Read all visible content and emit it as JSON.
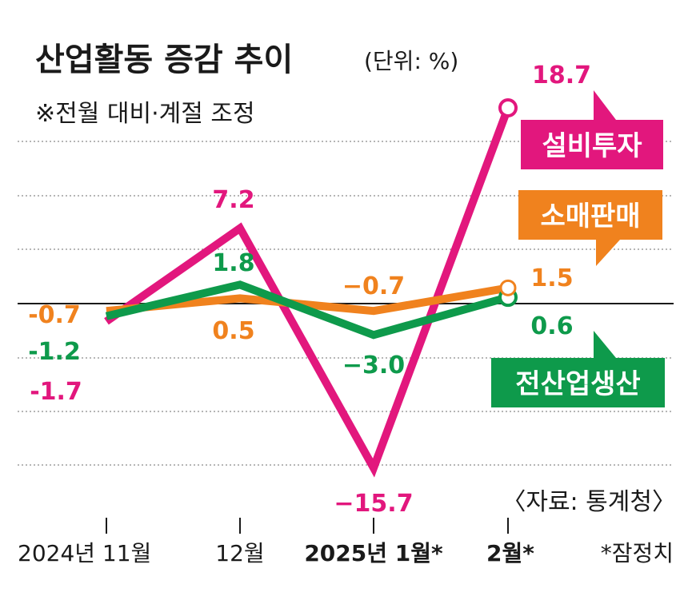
{
  "title": "산업활동 증감 추이",
  "unit": "(단위: %)",
  "note": "※전월 대비·계절 조정",
  "source": "〈자료: 통계청〉",
  "footnote": "*잠정치",
  "colors": {
    "equipment": "#e2177d",
    "retail": "#f0821e",
    "industry": "#0e9a4b",
    "axis": "#1a1a1a",
    "grid": "#8a8a8a"
  },
  "chart_data": {
    "type": "line",
    "title": "산업활동 증감 추이",
    "unit": "%",
    "categories": [
      "2024년 11월",
      "12월",
      "2025년 1월*",
      "2월*"
    ],
    "series": [
      {
        "name": "설비투자",
        "values": [
          -1.7,
          7.2,
          -15.7,
          18.7
        ],
        "labels": [
          "-1.7",
          "7.2",
          "−15.7",
          "18.7"
        ]
      },
      {
        "name": "소매판매",
        "values": [
          -0.7,
          0.5,
          -0.7,
          1.5
        ],
        "labels": [
          "-0.7",
          "0.5",
          "−0.7",
          "1.5"
        ]
      },
      {
        "name": "전산업생산",
        "values": [
          -1.2,
          1.8,
          -3.0,
          0.6
        ],
        "labels": [
          "-1.2",
          "1.8",
          "−3.0",
          "0.6"
        ]
      }
    ],
    "grid": true,
    "footnote": "*잠정치"
  }
}
